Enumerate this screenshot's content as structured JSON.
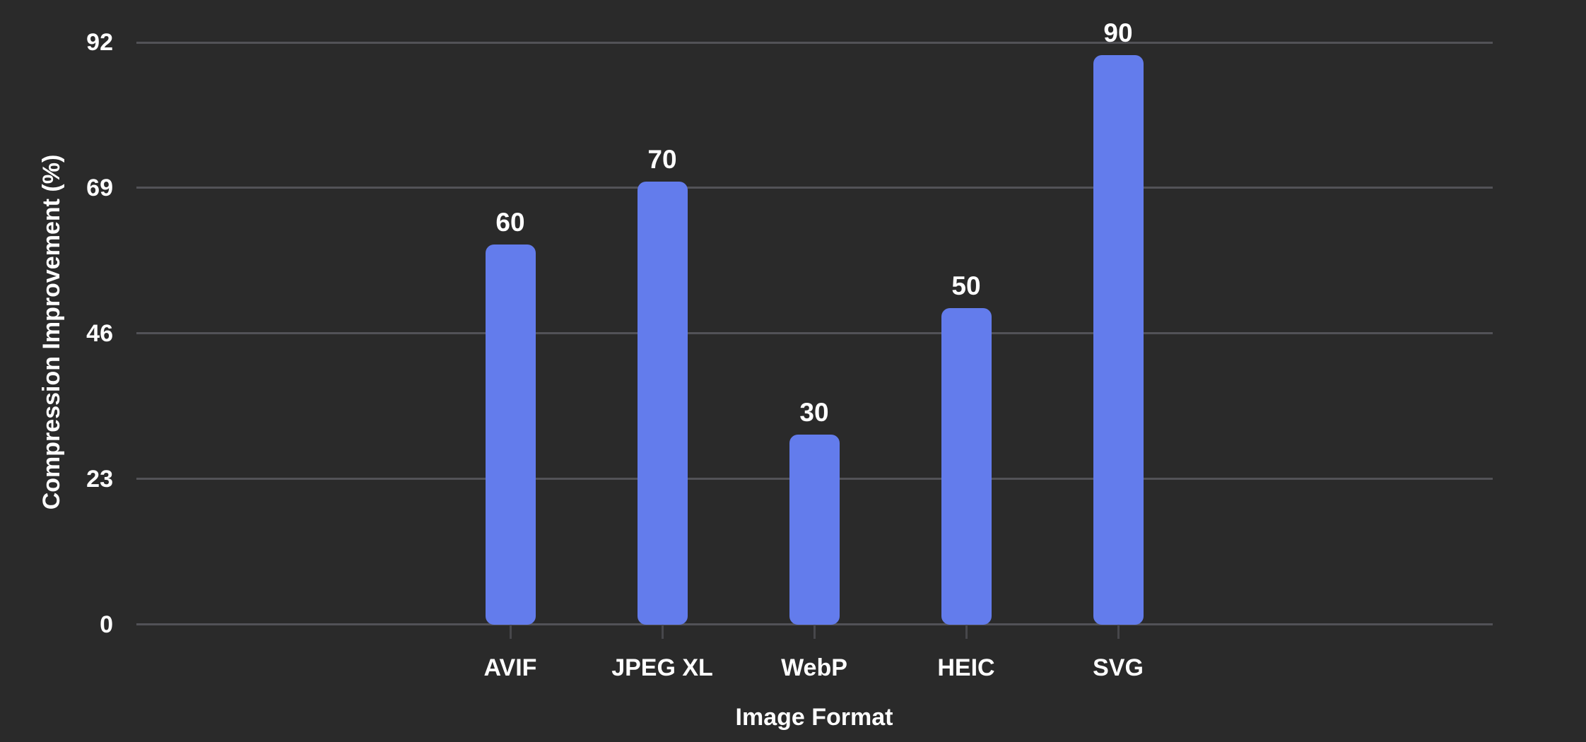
{
  "chart_data": {
    "type": "bar",
    "title": "",
    "xlabel": "Image Format",
    "ylabel": "Compression Improvement (%)",
    "categories": [
      "AVIF",
      "JPEG XL",
      "WebP",
      "HEIC",
      "SVG"
    ],
    "values": [
      60,
      70,
      30,
      50,
      90
    ],
    "value_labels": [
      "60",
      "70",
      "30",
      "50",
      "90"
    ],
    "yticks": [
      0,
      23,
      46,
      69,
      92
    ],
    "ytick_labels": [
      "0",
      "23",
      "46",
      "69",
      "92"
    ],
    "ylim": [
      0,
      92
    ],
    "grid": "horizontal-only",
    "legend": "none",
    "colors": {
      "background": "#2a2a2a",
      "bar": "#637cec",
      "gridline": "#525257",
      "axis_tick_mark": "#47474b",
      "text": "#ffffff"
    }
  }
}
